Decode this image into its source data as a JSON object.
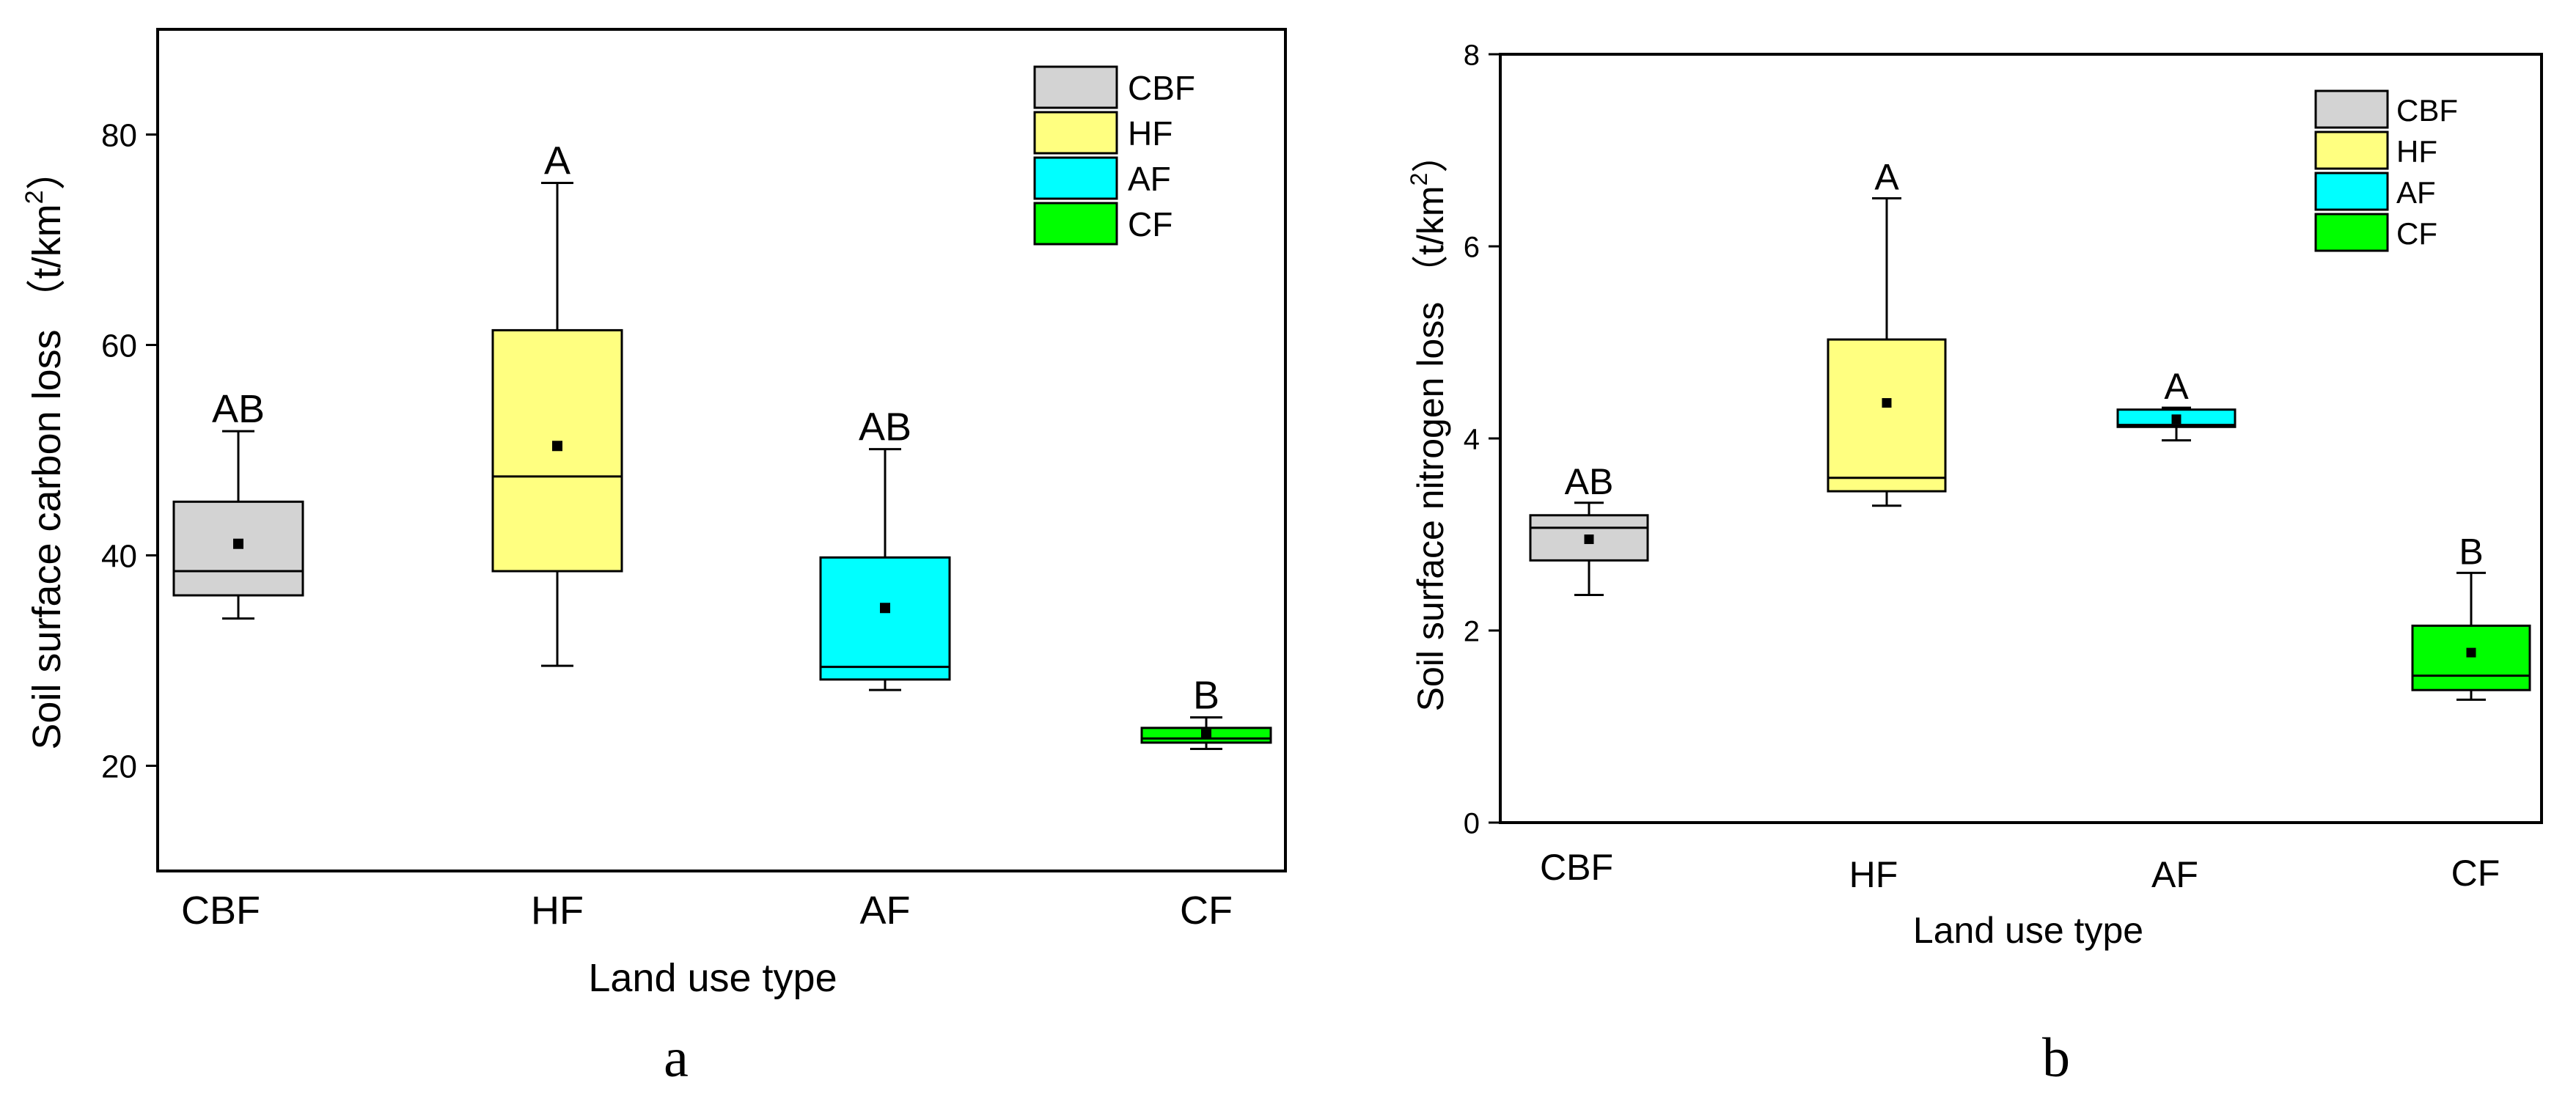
{
  "chart_data": [
    {
      "type": "box",
      "panel_label": "a",
      "xlabel": "Land use type",
      "ylabel": "Soil surface carbon loss （t/km",
      "ylabel_sup": "2",
      "ylabel_close": "）",
      "ylim": [
        10,
        90
      ],
      "yticks": [
        20,
        40,
        60,
        80
      ],
      "categories": [
        "CBF",
        "HF",
        "AF",
        "CF"
      ],
      "colors": [
        "#d3d3d3",
        "#ffff80",
        "#00ffff",
        "#00ff00"
      ],
      "legend": [
        "CBF",
        "HF",
        "AF",
        "CF"
      ],
      "series": [
        {
          "name": "CBF",
          "min": 34,
          "q1": 36.2,
          "median": 38.5,
          "q3": 45.1,
          "max": 51.8,
          "mean": 41.1,
          "sig": "AB"
        },
        {
          "name": "HF",
          "min": 29.5,
          "q1": 38.5,
          "median": 47.5,
          "q3": 61.4,
          "max": 75.4,
          "mean": 50.4,
          "sig": "A"
        },
        {
          "name": "AF",
          "min": 27.2,
          "q1": 28.2,
          "median": 29.4,
          "q3": 39.8,
          "max": 50.1,
          "mean": 35.0,
          "sig": "AB"
        },
        {
          "name": "CF",
          "min": 21.6,
          "q1": 22.2,
          "median": 22.6,
          "q3": 23.6,
          "max": 24.6,
          "mean": 23.0,
          "sig": "B"
        }
      ]
    },
    {
      "type": "box",
      "panel_label": "b",
      "xlabel": "Land use type",
      "ylabel": "Soil surface nitrogen loss （t/km",
      "ylabel_sup": "2",
      "ylabel_close": "）",
      "ylim": [
        0,
        8
      ],
      "yticks": [
        0,
        2,
        4,
        6,
        8
      ],
      "categories": [
        "CBF",
        "HF",
        "AF",
        "CF"
      ],
      "colors": [
        "#d3d3d3",
        "#ffff80",
        "#00ffff",
        "#00ff00"
      ],
      "legend": [
        "CBF",
        "HF",
        "AF",
        "CF"
      ],
      "series": [
        {
          "name": "CBF",
          "min": 2.37,
          "q1": 2.73,
          "median": 3.07,
          "q3": 3.2,
          "max": 3.33,
          "mean": 2.95,
          "sig": "AB"
        },
        {
          "name": "HF",
          "min": 3.3,
          "q1": 3.45,
          "median": 3.59,
          "q3": 5.03,
          "max": 6.5,
          "mean": 4.37,
          "sig": "A"
        },
        {
          "name": "AF",
          "min": 3.98,
          "q1": 4.12,
          "median": 4.14,
          "q3": 4.3,
          "max": 4.32,
          "mean": 4.2,
          "sig": "A"
        },
        {
          "name": "CF",
          "min": 1.28,
          "q1": 1.38,
          "median": 1.53,
          "q3": 2.05,
          "max": 2.6,
          "mean": 1.77,
          "sig": "B"
        }
      ]
    }
  ]
}
